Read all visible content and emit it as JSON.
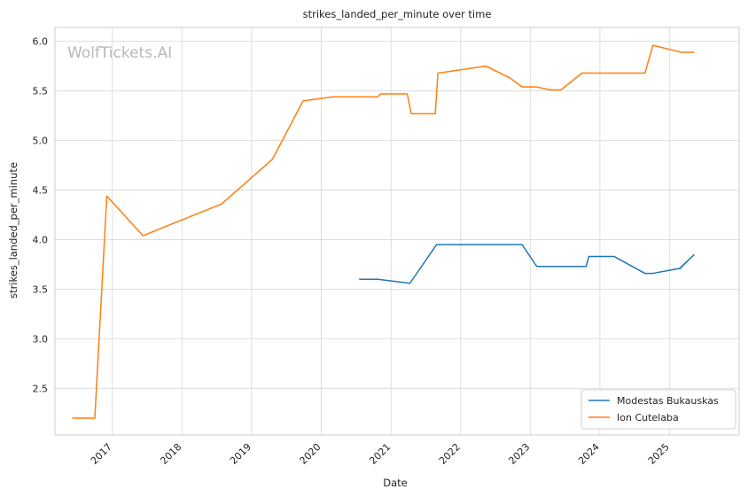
{
  "chart_data": {
    "type": "line",
    "title": "strikes_landed_per_minute over time",
    "xlabel": "Date",
    "ylabel": "strikes_landed_per_minute",
    "watermark": "WolfTickets.AI",
    "xlim": [
      "2016-03-06",
      "2025-12-31"
    ],
    "ylim": [
      2.03,
      6.14
    ],
    "x_ticks": [
      "2017",
      "2018",
      "2019",
      "2020",
      "2021",
      "2022",
      "2023",
      "2024",
      "2025"
    ],
    "y_ticks": [
      "2.5",
      "3.0",
      "3.5",
      "4.0",
      "4.5",
      "5.0",
      "5.5",
      "6.0"
    ],
    "grid": true,
    "legend_position": "bottom-right",
    "series": [
      {
        "name": "Modestas Bukauskas",
        "color": "#1f77b4",
        "points": [
          [
            "2020-07-18",
            3.6
          ],
          [
            "2020-10-24",
            3.6
          ],
          [
            "2021-04-10",
            3.56
          ],
          [
            "2021-08-28",
            3.95
          ],
          [
            "2022-11-19",
            3.95
          ],
          [
            "2023-02-04",
            3.73
          ],
          [
            "2023-06-03",
            3.73
          ],
          [
            "2023-10-21",
            3.73
          ],
          [
            "2023-11-04",
            3.83
          ],
          [
            "2024-03-16",
            3.83
          ],
          [
            "2024-08-24",
            3.66
          ],
          [
            "2024-10-05",
            3.66
          ],
          [
            "2025-02-22",
            3.71
          ],
          [
            "2025-05-10",
            3.85
          ]
        ],
        "band": [
          [
            "2025-02-22",
            3.71,
            3.68
          ],
          [
            "2025-05-10",
            3.85,
            3.85
          ]
        ]
      },
      {
        "name": "Ion Cutelaba",
        "color": "#ff7f0e",
        "points": [
          [
            "2016-06-04",
            2.2
          ],
          [
            "2016-10-01",
            2.2
          ],
          [
            "2016-12-03",
            4.44
          ],
          [
            "2017-06-10",
            4.04
          ],
          [
            "2018-07-28",
            4.36
          ],
          [
            "2019-04-20",
            4.81
          ],
          [
            "2019-09-28",
            5.4
          ],
          [
            "2020-02-29",
            5.44
          ],
          [
            "2020-10-24",
            5.44
          ],
          [
            "2020-11-07",
            5.47
          ],
          [
            "2021-03-27",
            5.47
          ],
          [
            "2021-04-17",
            5.27
          ],
          [
            "2021-08-21",
            5.27
          ],
          [
            "2021-09-04",
            5.68
          ],
          [
            "2022-05-14",
            5.75
          ],
          [
            "2022-09-17",
            5.63
          ],
          [
            "2022-11-19",
            5.54
          ],
          [
            "2023-02-04",
            5.54
          ],
          [
            "2023-04-15",
            5.51
          ],
          [
            "2023-06-10",
            5.51
          ],
          [
            "2023-09-30",
            5.68
          ],
          [
            "2024-08-24",
            5.68
          ],
          [
            "2024-10-05",
            5.96
          ],
          [
            "2025-03-01",
            5.89
          ],
          [
            "2025-05-10",
            5.89
          ]
        ]
      }
    ]
  }
}
